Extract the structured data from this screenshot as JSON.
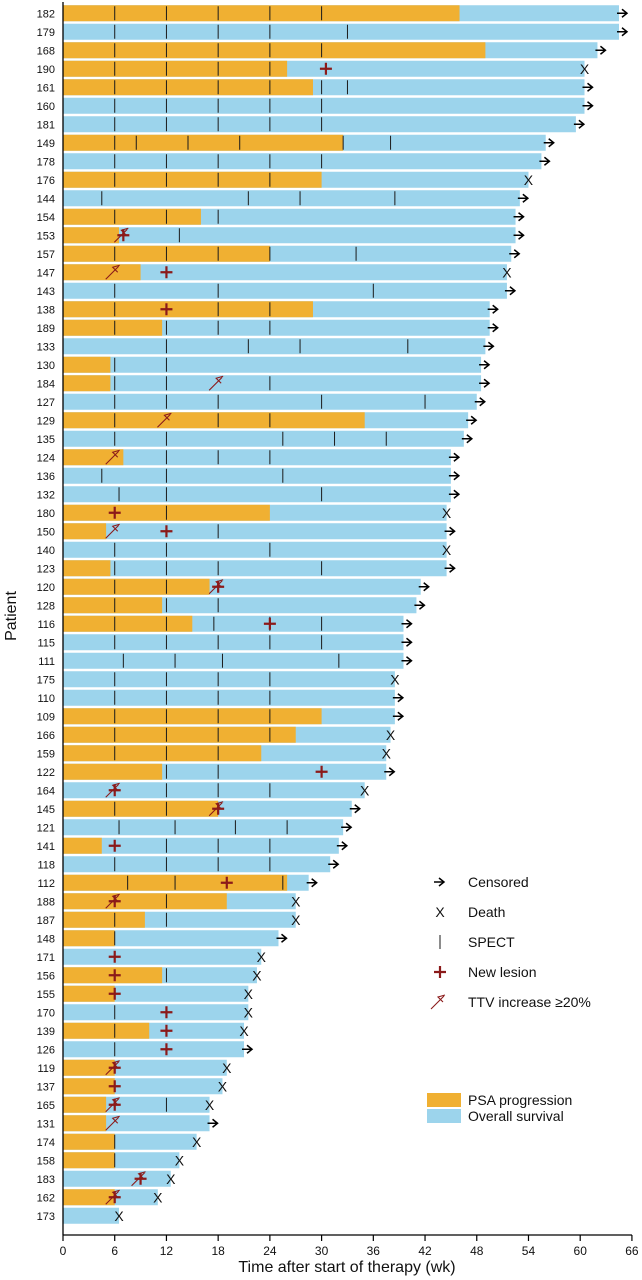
{
  "chart_data": {
    "type": "swimmer",
    "xlabel": "Time after start of therapy (wk)",
    "ylabel": "Patient",
    "xlim": [
      0,
      66
    ],
    "xticks": [
      0,
      6,
      12,
      18,
      24,
      30,
      36,
      42,
      48,
      54,
      60,
      66
    ],
    "legend_placement": "bottom-right",
    "legend_markers": [
      {
        "key": "censored",
        "label": "Censored"
      },
      {
        "key": "death",
        "label": "Death"
      },
      {
        "key": "spect",
        "label": "SPECT"
      },
      {
        "key": "new_lesion",
        "label": "New lesion"
      },
      {
        "key": "ttv",
        "label": "TTV increase ≥20%"
      }
    ],
    "legend_bars": [
      {
        "key": "psa",
        "label": "PSA progression",
        "color": "#F0B032"
      },
      {
        "key": "os",
        "label": "Overall survival",
        "color": "#9CD4EC"
      }
    ],
    "patients": [
      {
        "id": "182",
        "os": 64.5,
        "psa": 46.0,
        "end": "censored",
        "spect": [
          6,
          12,
          18,
          24,
          30
        ],
        "lesion": [],
        "ttv": []
      },
      {
        "id": "179",
        "os": 64.5,
        "psa": 0,
        "end": "censored",
        "spect": [
          6,
          12,
          18,
          24,
          33
        ],
        "lesion": [],
        "ttv": []
      },
      {
        "id": "168",
        "os": 62.0,
        "psa": 49.0,
        "end": "censored",
        "spect": [
          6,
          12,
          18,
          24,
          30
        ],
        "lesion": [],
        "ttv": []
      },
      {
        "id": "190",
        "os": 60.5,
        "psa": 26.0,
        "end": "death",
        "spect": [
          6,
          12,
          18,
          24
        ],
        "lesion": [
          30.5
        ],
        "ttv": []
      },
      {
        "id": "161",
        "os": 60.5,
        "psa": 29.0,
        "end": "censored",
        "spect": [
          6,
          12,
          18,
          24,
          30,
          33
        ],
        "lesion": [],
        "ttv": []
      },
      {
        "id": "160",
        "os": 60.5,
        "psa": 0,
        "end": "censored",
        "spect": [
          6,
          12,
          18,
          24,
          30
        ],
        "lesion": [],
        "ttv": []
      },
      {
        "id": "181",
        "os": 59.5,
        "psa": 0,
        "end": "censored",
        "spect": [
          6,
          12,
          18,
          24,
          30
        ],
        "lesion": [],
        "ttv": []
      },
      {
        "id": "149",
        "os": 56.0,
        "psa": 32.5,
        "end": "censored",
        "spect": [
          6,
          8.5,
          14.5,
          20.5,
          32.5,
          38
        ],
        "lesion": [],
        "ttv": []
      },
      {
        "id": "178",
        "os": 55.5,
        "psa": 0,
        "end": "censored",
        "spect": [
          6,
          12,
          18,
          24,
          30
        ],
        "lesion": [],
        "ttv": []
      },
      {
        "id": "176",
        "os": 54.0,
        "psa": 30.0,
        "end": "death",
        "spect": [
          6,
          12,
          18,
          24
        ],
        "lesion": [],
        "ttv": []
      },
      {
        "id": "144",
        "os": 53.0,
        "psa": 0,
        "end": "censored",
        "spect": [
          4.5,
          21.5,
          27.5,
          38.5
        ],
        "lesion": [],
        "ttv": []
      },
      {
        "id": "154",
        "os": 52.5,
        "psa": 16.0,
        "end": "censored",
        "spect": [
          6,
          12,
          18
        ],
        "lesion": [],
        "ttv": []
      },
      {
        "id": "153",
        "os": 52.5,
        "psa": 6.5,
        "end": "censored",
        "spect": [
          13.5
        ],
        "lesion": [
          7.0
        ],
        "ttv": [
          7.0
        ]
      },
      {
        "id": "157",
        "os": 52.0,
        "psa": 24.0,
        "end": "censored",
        "spect": [
          6,
          12,
          18,
          24,
          34
        ],
        "lesion": [],
        "ttv": []
      },
      {
        "id": "147",
        "os": 51.5,
        "psa": 9.0,
        "end": "death",
        "spect": [],
        "lesion": [
          12.0
        ],
        "ttv": [
          6.0
        ]
      },
      {
        "id": "143",
        "os": 51.5,
        "psa": 0,
        "end": "censored",
        "spect": [
          6,
          18,
          36
        ],
        "lesion": [],
        "ttv": []
      },
      {
        "id": "138",
        "os": 49.5,
        "psa": 29.0,
        "end": "censored",
        "spect": [
          6,
          18,
          24
        ],
        "lesion": [
          12.0
        ],
        "ttv": []
      },
      {
        "id": "189",
        "os": 49.5,
        "psa": 11.5,
        "end": "censored",
        "spect": [
          6,
          12,
          18,
          24
        ],
        "lesion": [],
        "ttv": []
      },
      {
        "id": "133",
        "os": 49.0,
        "psa": 0,
        "end": "censored",
        "spect": [
          12,
          21.5,
          27.5,
          40
        ],
        "lesion": [],
        "ttv": []
      },
      {
        "id": "130",
        "os": 48.5,
        "psa": 5.5,
        "end": "censored",
        "spect": [
          6,
          12
        ],
        "lesion": [],
        "ttv": []
      },
      {
        "id": "184",
        "os": 48.5,
        "psa": 5.5,
        "end": "censored",
        "spect": [
          6,
          12,
          24
        ],
        "lesion": [],
        "ttv": [
          18.0
        ]
      },
      {
        "id": "127",
        "os": 48.0,
        "psa": 0,
        "end": "censored",
        "spect": [
          6,
          12,
          18,
          30,
          42
        ],
        "lesion": [],
        "ttv": []
      },
      {
        "id": "129",
        "os": 47.0,
        "psa": 35.0,
        "end": "censored",
        "spect": [
          6,
          18,
          24
        ],
        "lesion": [],
        "ttv": [
          12.0
        ]
      },
      {
        "id": "135",
        "os": 46.5,
        "psa": 0,
        "end": "censored",
        "spect": [
          6,
          12,
          25.5,
          31.5,
          37.5
        ],
        "lesion": [],
        "ttv": []
      },
      {
        "id": "124",
        "os": 45.0,
        "psa": 7.0,
        "end": "censored",
        "spect": [
          12,
          18,
          24
        ],
        "lesion": [],
        "ttv": [
          6.0
        ]
      },
      {
        "id": "136",
        "os": 45.0,
        "psa": 0,
        "end": "censored",
        "spect": [
          4.5,
          12,
          25.5
        ],
        "lesion": [],
        "ttv": []
      },
      {
        "id": "132",
        "os": 45.0,
        "psa": 0,
        "end": "censored",
        "spect": [
          6.5,
          12,
          30
        ],
        "lesion": [],
        "ttv": []
      },
      {
        "id": "180",
        "os": 44.5,
        "psa": 24.0,
        "end": "death",
        "spect": [
          12
        ],
        "lesion": [
          6.0
        ],
        "ttv": []
      },
      {
        "id": "150",
        "os": 44.5,
        "psa": 5.0,
        "end": "censored",
        "spect": [
          18
        ],
        "lesion": [
          12.0
        ],
        "ttv": [
          6.0
        ]
      },
      {
        "id": "140",
        "os": 44.5,
        "psa": 0,
        "end": "death",
        "spect": [
          6,
          12,
          24
        ],
        "lesion": [],
        "ttv": []
      },
      {
        "id": "123",
        "os": 44.5,
        "psa": 5.5,
        "end": "censored",
        "spect": [
          6,
          12,
          18,
          30
        ],
        "lesion": [],
        "ttv": []
      },
      {
        "id": "120",
        "os": 41.5,
        "psa": 17.0,
        "end": "censored",
        "spect": [
          6,
          12
        ],
        "lesion": [
          18.0
        ],
        "ttv": [
          18.0
        ]
      },
      {
        "id": "128",
        "os": 41.0,
        "psa": 11.5,
        "end": "censored",
        "spect": [
          6,
          12,
          18
        ],
        "lesion": [],
        "ttv": []
      },
      {
        "id": "116",
        "os": 39.5,
        "psa": 15.0,
        "end": "censored",
        "spect": [
          6,
          12,
          17.5,
          24,
          30
        ],
        "lesion": [
          24.0
        ],
        "ttv": []
      },
      {
        "id": "115",
        "os": 39.5,
        "psa": 0,
        "end": "censored",
        "spect": [
          6,
          12,
          18,
          24,
          30
        ],
        "lesion": [],
        "ttv": []
      },
      {
        "id": "111",
        "os": 39.5,
        "psa": 0,
        "end": "censored",
        "spect": [
          7,
          13,
          18.5,
          32
        ],
        "lesion": [],
        "ttv": []
      },
      {
        "id": "175",
        "os": 38.5,
        "psa": 0,
        "end": "death",
        "spect": [
          6,
          12,
          18,
          24
        ],
        "lesion": [],
        "ttv": []
      },
      {
        "id": "110",
        "os": 38.5,
        "psa": 0,
        "end": "censored",
        "spect": [
          6,
          12,
          18,
          24
        ],
        "lesion": [],
        "ttv": []
      },
      {
        "id": "109",
        "os": 38.5,
        "psa": 30.0,
        "end": "censored",
        "spect": [
          6,
          12,
          18,
          24
        ],
        "lesion": [],
        "ttv": []
      },
      {
        "id": "166",
        "os": 38.0,
        "psa": 27.0,
        "end": "death",
        "spect": [
          6,
          12,
          18,
          24
        ],
        "lesion": [],
        "ttv": []
      },
      {
        "id": "159",
        "os": 37.5,
        "psa": 23.0,
        "end": "death",
        "spect": [
          6,
          12,
          18
        ],
        "lesion": [],
        "ttv": []
      },
      {
        "id": "122",
        "os": 37.5,
        "psa": 11.5,
        "end": "censored",
        "spect": [
          12,
          18
        ],
        "lesion": [
          30.0
        ],
        "ttv": []
      },
      {
        "id": "164",
        "os": 35.0,
        "psa": 0,
        "end": "death",
        "spect": [
          12,
          18,
          24
        ],
        "lesion": [
          6.0
        ],
        "ttv": [
          6.0
        ]
      },
      {
        "id": "145",
        "os": 33.5,
        "psa": 18.0,
        "end": "censored",
        "spect": [
          6,
          12
        ],
        "lesion": [
          18.0
        ],
        "ttv": [
          18.0
        ]
      },
      {
        "id": "121",
        "os": 32.5,
        "psa": 0,
        "end": "censored",
        "spect": [
          6.5,
          13,
          20,
          26
        ],
        "lesion": [],
        "ttv": []
      },
      {
        "id": "141",
        "os": 32.0,
        "psa": 4.5,
        "end": "censored",
        "spect": [
          12,
          18,
          24
        ],
        "lesion": [
          6.0
        ],
        "ttv": []
      },
      {
        "id": "118",
        "os": 31.0,
        "psa": 0,
        "end": "censored",
        "spect": [
          6,
          12,
          18,
          24
        ],
        "lesion": [],
        "ttv": []
      },
      {
        "id": "112",
        "os": 28.5,
        "psa": 26.0,
        "end": "censored",
        "spect": [
          7.5,
          13,
          25.5
        ],
        "lesion": [
          19.0
        ],
        "ttv": []
      },
      {
        "id": "188",
        "os": 27.0,
        "psa": 19.0,
        "end": "death",
        "spect": [
          12
        ],
        "lesion": [
          6.0
        ],
        "ttv": [
          6.0
        ]
      },
      {
        "id": "187",
        "os": 27.0,
        "psa": 9.5,
        "end": "death",
        "spect": [
          6,
          12
        ],
        "lesion": [],
        "ttv": []
      },
      {
        "id": "148",
        "os": 25.0,
        "psa": 6.0,
        "end": "censored",
        "spect": [
          6
        ],
        "lesion": [],
        "ttv": []
      },
      {
        "id": "171",
        "os": 23.0,
        "psa": 0,
        "end": "death",
        "spect": [],
        "lesion": [
          6.0
        ],
        "ttv": []
      },
      {
        "id": "156",
        "os": 22.5,
        "psa": 11.5,
        "end": "death",
        "spect": [
          12
        ],
        "lesion": [
          6.0
        ],
        "ttv": []
      },
      {
        "id": "155",
        "os": 21.5,
        "psa": 6.0,
        "end": "death",
        "spect": [],
        "lesion": [
          6.0
        ],
        "ttv": []
      },
      {
        "id": "170",
        "os": 21.5,
        "psa": 0,
        "end": "death",
        "spect": [
          6
        ],
        "lesion": [
          12.0
        ],
        "ttv": []
      },
      {
        "id": "139",
        "os": 21.0,
        "psa": 10.0,
        "end": "death",
        "spect": [
          6
        ],
        "lesion": [
          12.0
        ],
        "ttv": []
      },
      {
        "id": "126",
        "os": 21.0,
        "psa": 0,
        "end": "censored",
        "spect": [
          6
        ],
        "lesion": [
          12.0
        ],
        "ttv": []
      },
      {
        "id": "119",
        "os": 19.0,
        "psa": 6.0,
        "end": "death",
        "spect": [],
        "lesion": [
          6.0
        ],
        "ttv": [
          6.0
        ]
      },
      {
        "id": "137",
        "os": 18.5,
        "psa": 6.0,
        "end": "death",
        "spect": [],
        "lesion": [
          6.0
        ],
        "ttv": []
      },
      {
        "id": "165",
        "os": 17.0,
        "psa": 5.0,
        "end": "death",
        "spect": [
          12
        ],
        "lesion": [
          6.0
        ],
        "ttv": [
          6.0
        ]
      },
      {
        "id": "131",
        "os": 17.0,
        "psa": 5.0,
        "end": "censored",
        "spect": [],
        "lesion": [],
        "ttv": [
          6.0
        ]
      },
      {
        "id": "174",
        "os": 15.5,
        "psa": 6.0,
        "end": "death",
        "spect": [
          6
        ],
        "lesion": [],
        "ttv": []
      },
      {
        "id": "158",
        "os": 13.5,
        "psa": 6.0,
        "end": "death",
        "spect": [
          6
        ],
        "lesion": [],
        "ttv": []
      },
      {
        "id": "183",
        "os": 12.5,
        "psa": 0,
        "end": "death",
        "spect": [],
        "lesion": [
          9.0
        ],
        "ttv": [
          9.0
        ]
      },
      {
        "id": "162",
        "os": 11.0,
        "psa": 6.0,
        "end": "death",
        "spect": [],
        "lesion": [
          6.0
        ],
        "ttv": [
          6.0
        ]
      },
      {
        "id": "173",
        "os": 6.5,
        "psa": 0,
        "end": "death",
        "spect": [],
        "lesion": [],
        "ttv": []
      }
    ]
  }
}
